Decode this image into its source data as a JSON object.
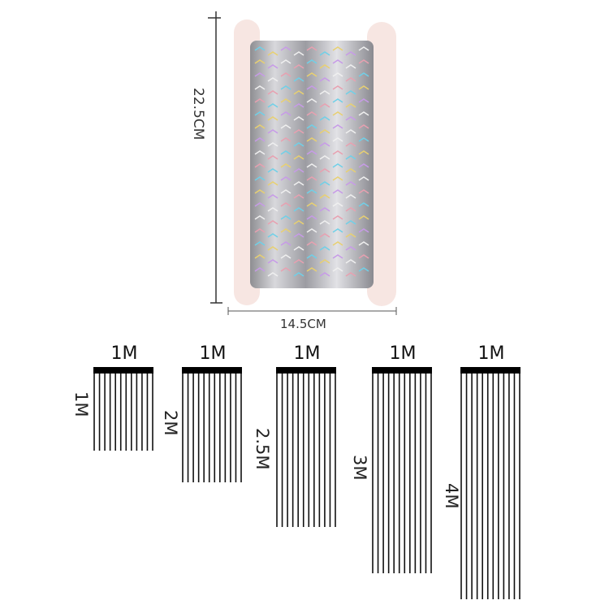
{
  "product": {
    "height_label": "22.5CM",
    "width_label": "14.5CM",
    "colors": {
      "silver": "#b8b8bc",
      "card": "#f6e3df"
    }
  },
  "fringe_sizes": [
    {
      "width_label": "1M",
      "length_label": "1M",
      "length_m": 1
    },
    {
      "width_label": "1M",
      "length_label": "2M",
      "length_m": 2
    },
    {
      "width_label": "1M",
      "length_label": "2.5M",
      "length_m": 2.5
    },
    {
      "width_label": "1M",
      "length_label": "3M",
      "length_m": 3
    },
    {
      "width_label": "1M",
      "length_label": "4M",
      "length_m": 4
    }
  ]
}
